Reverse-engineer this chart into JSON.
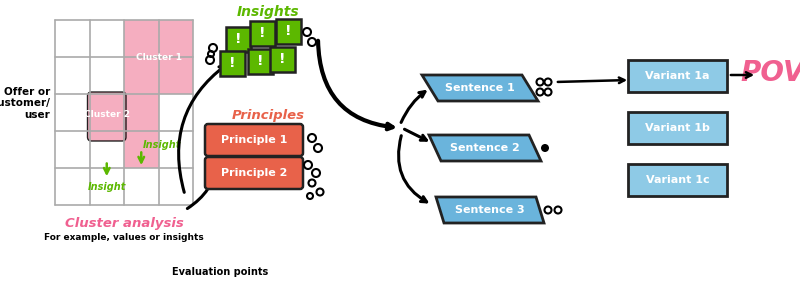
{
  "bg_color": "#ffffff",
  "grid_color": "#aaaaaa",
  "pink_color": "#f4a0b5",
  "green_color": "#5cb800",
  "orange_color": "#e8624a",
  "blue_color": "#6ab4dc",
  "blue_variant_color": "#8ecae6",
  "pink_text_color": "#f06090",
  "title_cluster": "Cluster analysis",
  "subtitle_cluster": "For example, values or insights",
  "label_offer": "Offer or\ncustomer/\nuser",
  "label_cluster1": "Cluster 1",
  "label_cluster2": "Cluster 2",
  "label_insight1": "Insight",
  "label_insight2": "Insight",
  "label_insights_title": "Insights",
  "label_principles": "Principles",
  "label_principle1": "Principle 1",
  "label_principle2": "Principle 2",
  "label_eval": "Evaluation points",
  "label_sentence1": "Sentence 1",
  "label_sentence2": "Sentence 2",
  "label_sentence3": "Sentence 3",
  "label_variant1a": "Variant 1a",
  "label_variant1b": "Variant 1b",
  "label_variant1c": "Variant 1c",
  "label_pov": "POV"
}
